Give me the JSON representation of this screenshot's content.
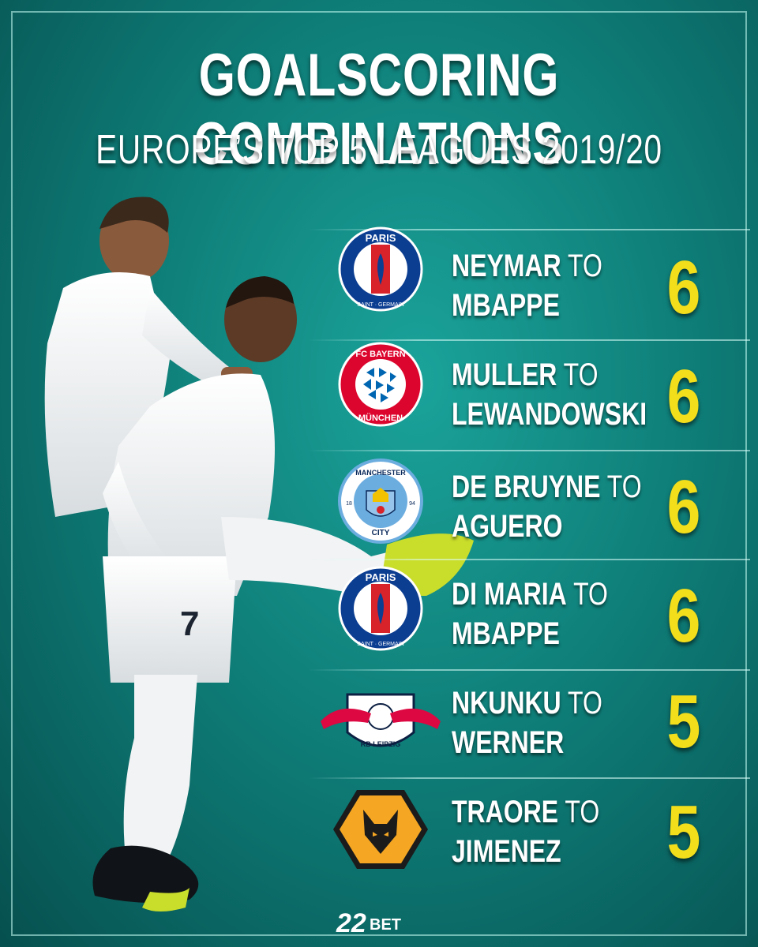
{
  "header": {
    "title": "GOALSCORING COMBINATIONS",
    "subtitle": "EUROPE’S TOP 5 LEAGUES 2019/20"
  },
  "combinations": [
    {
      "club": "Paris Saint-Germain",
      "logo_icon": "psg-crest-icon",
      "line1_bold": "NEYMAR",
      "line1_rest": " TO",
      "line2": "MBAPPE",
      "count": "6"
    },
    {
      "club": "FC Bayern München",
      "logo_icon": "bayern-crest-icon",
      "line1_bold": "MULLER",
      "line1_rest": " TO",
      "line2": "LEWANDOWSKI",
      "count": "6"
    },
    {
      "club": "Manchester City",
      "logo_icon": "man-city-crest-icon",
      "line1_bold": "DE BRUYNE",
      "line1_rest": " TO",
      "line2": "AGUERO",
      "count": "6"
    },
    {
      "club": "Paris Saint-Germain",
      "logo_icon": "psg-crest-icon",
      "line1_bold": "DI MARIA",
      "line1_rest": " TO",
      "line2": "MBAPPE",
      "count": "6"
    },
    {
      "club": "RB Leipzig",
      "logo_icon": "rb-leipzig-crest-icon",
      "line1_bold": "NKUNKU",
      "line1_rest": " TO",
      "line2": "WERNER",
      "count": "5"
    },
    {
      "club": "Wolverhampton Wanderers",
      "logo_icon": "wolves-crest-icon",
      "line1_bold": "TRAORE",
      "line1_rest": " TO",
      "line2": "JIMENEZ",
      "count": "5"
    }
  ],
  "logos": {
    "psg_top": "PARIS",
    "psg_bottom": "SAINT · GERMAIN",
    "bayern_top": "FC BAYERN",
    "bayern_bottom": "MÜNCHEN",
    "city_top": "MANCHESTER",
    "city_bottom": "CITY",
    "city_year_left": "18",
    "city_year_right": "94",
    "rb_text": "RB LEIPZIG"
  },
  "brand": {
    "number": "22",
    "name": "BET"
  },
  "colors": {
    "accent_yellow": "#f2de1b",
    "background_teal": "#0f7f79"
  }
}
